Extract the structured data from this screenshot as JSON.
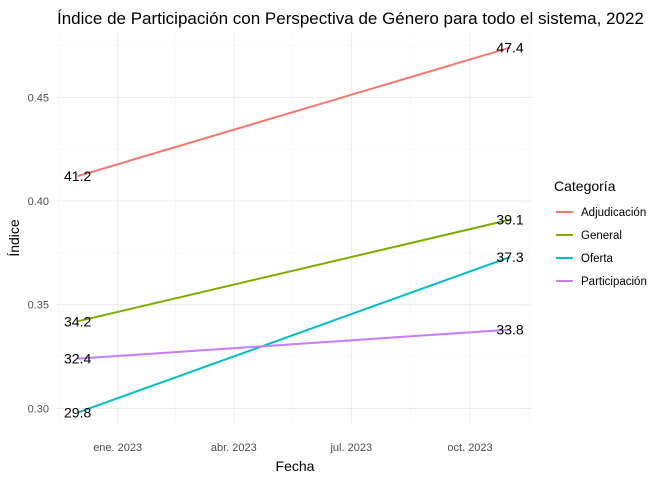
{
  "chart_data": {
    "type": "line",
    "title": "Índice de Participación con Perspectiva de Género para todo el sistema, 2022",
    "xlabel": "Fecha",
    "ylabel": "Índice",
    "x": [
      "2022-12-01",
      "2023-11-01"
    ],
    "x_ticks": [
      {
        "date": "2023-01-01",
        "label": "ene. 2023"
      },
      {
        "date": "2023-04-01",
        "label": "abr. 2023"
      },
      {
        "date": "2023-07-01",
        "label": "jul. 2023"
      },
      {
        "date": "2023-10-01",
        "label": "oct. 2023"
      }
    ],
    "y_ticks": [
      0.3,
      0.35,
      0.4,
      0.45
    ],
    "y_tick_labels": [
      "0.30",
      "0.35",
      "0.40",
      "0.45"
    ],
    "ylim": [
      0.2925,
      0.4815
    ],
    "xlim": [
      "2022-11-15",
      "2023-11-18"
    ],
    "grid": true,
    "legend_title": "Categoría",
    "legend_position": "right",
    "series": [
      {
        "name": "Adjudicación",
        "color": "#F8766D",
        "values": [
          0.412,
          0.474
        ],
        "labels": [
          "41.2",
          "47.4"
        ]
      },
      {
        "name": "General",
        "color": "#7CAE00",
        "values": [
          0.342,
          0.391
        ],
        "labels": [
          "34.2",
          "39.1"
        ]
      },
      {
        "name": "Oferta",
        "color": "#00BFC4",
        "values": [
          0.298,
          0.373
        ],
        "labels": [
          "29.8",
          "37.3"
        ]
      },
      {
        "name": "Participación",
        "color": "#C77CFF",
        "values": [
          0.324,
          0.338
        ],
        "labels": [
          "32.4",
          "33.8"
        ]
      }
    ]
  }
}
